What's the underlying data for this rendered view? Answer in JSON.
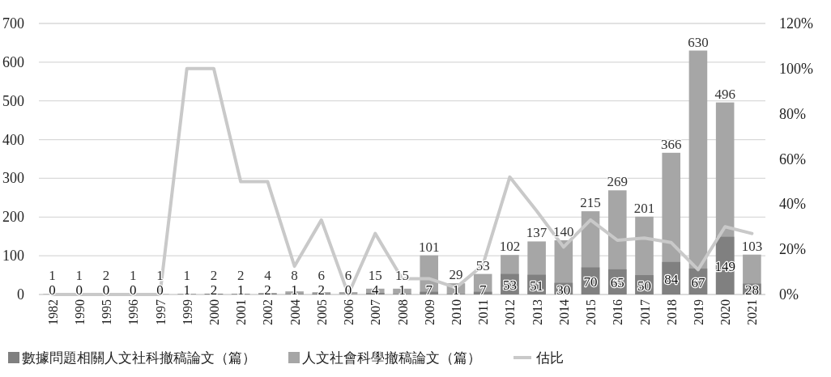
{
  "chart_data": {
    "type": "bar",
    "categories": [
      "1982",
      "1990",
      "1995",
      "1996",
      "1997",
      "1999",
      "2000",
      "2001",
      "2002",
      "2004",
      "2005",
      "2006",
      "2007",
      "2008",
      "2009",
      "2010",
      "2011",
      "2012",
      "2013",
      "2014",
      "2015",
      "2016",
      "2017",
      "2018",
      "2019",
      "2020",
      "2021"
    ],
    "series": [
      {
        "name": "人文社會科學撤稿論文（篇）",
        "color": "#a6a6a6",
        "values": [
          1,
          1,
          2,
          1,
          1,
          1,
          2,
          2,
          4,
          8,
          6,
          6,
          15,
          15,
          101,
          29,
          53,
          102,
          137,
          140,
          215,
          269,
          201,
          366,
          630,
          496,
          103
        ],
        "value_labels": [
          "1",
          "1",
          "2",
          "1",
          "1",
          "1",
          "2",
          "2",
          "4",
          "8",
          "6",
          "6",
          "15",
          "15",
          "101",
          "29",
          "53",
          "102",
          "137",
          "140",
          "215",
          "269",
          "201",
          "366",
          "630",
          "496",
          "103"
        ]
      },
      {
        "name": "數據問題相關人文社科撤稿論文（篇）",
        "color": "#808080",
        "values": [
          0,
          0,
          0,
          0,
          0,
          1,
          2,
          1,
          2,
          1,
          2,
          0,
          4,
          1,
          7,
          1,
          7,
          53,
          51,
          30,
          70,
          65,
          50,
          84,
          67,
          149,
          28
        ],
        "value_labels": [
          "0",
          "0",
          "0",
          "0",
          "0",
          "1",
          "2",
          "1",
          "2",
          "1",
          "2",
          "0",
          "4",
          "1",
          "7",
          "1",
          "7",
          "53",
          "51",
          "30",
          "70",
          "65",
          "50",
          "84",
          "67",
          "149",
          "28"
        ]
      },
      {
        "name": "估比",
        "type": "line",
        "axis": "y2",
        "color": "#c9c9c9",
        "values": [
          0,
          0,
          0,
          0,
          0,
          100,
          100,
          50,
          50,
          12.5,
          33,
          0,
          27,
          7,
          7,
          3,
          13,
          52,
          37,
          21,
          33,
          24,
          25,
          23,
          11,
          30,
          27
        ]
      }
    ],
    "ylim": [
      0,
      700
    ],
    "yticks": [
      0,
      100,
      200,
      300,
      400,
      500,
      600,
      700
    ],
    "y2lim": [
      0,
      120
    ],
    "y2ticks": [
      {
        "value": 0,
        "label": "0%"
      },
      {
        "value": 20,
        "label": "20%"
      },
      {
        "value": 40,
        "label": "40%"
      },
      {
        "value": 60,
        "label": "60%"
      },
      {
        "value": 80,
        "label": "80%"
      },
      {
        "value": 100,
        "label": "100%"
      },
      {
        "value": 120,
        "label": "120%"
      }
    ],
    "grid": "y",
    "legend": "bottom",
    "marker": "none",
    "line_style": "solid"
  }
}
